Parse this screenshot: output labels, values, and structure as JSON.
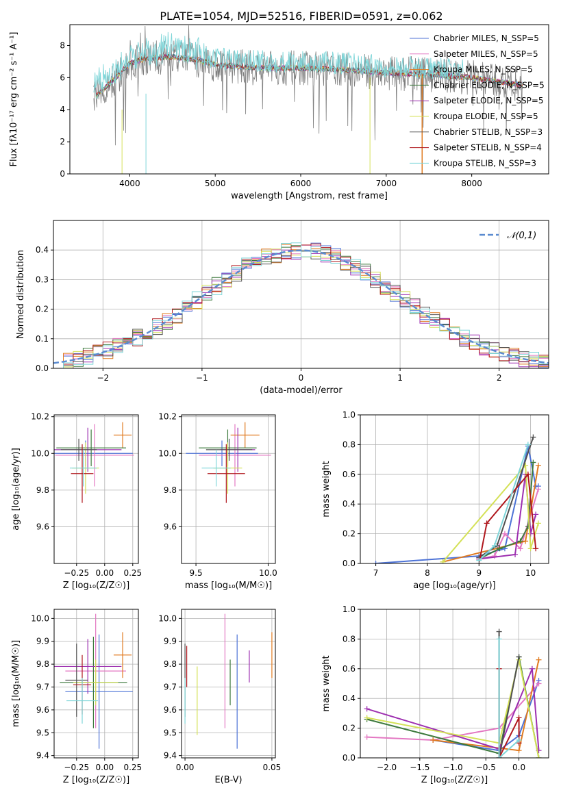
{
  "title": "PLATE=1054, MJD=52516, FIBERID=0591, z=0.062",
  "colors": [
    "#4c72d6",
    "#e377c2",
    "#e07a1f",
    "#3e7a3e",
    "#9d2fb0",
    "#d4e157",
    "#505050",
    "#b0181e",
    "#7fd6d9"
  ],
  "chart_data": [
    {
      "type": "line",
      "panel": "spectrum",
      "xlabel": "wavelength [Angstrom, rest frame]",
      "ylabel": "Flux [fλ10⁻¹⁷ erg cm⁻² s⁻¹ A⁻¹]",
      "xlim": [
        3300,
        8900
      ],
      "ylim": [
        0,
        9.3
      ],
      "xticks": [
        4000,
        5000,
        6000,
        7000,
        8000
      ],
      "yticks": [
        0,
        2,
        4,
        6,
        8
      ],
      "grid": false,
      "legend_position": "right",
      "series": [
        {
          "name": "Chabrier MILES, N_SSP=5"
        },
        {
          "name": "Salpeter MILES, N_SSP=5"
        },
        {
          "name": "Kroupa MILES, N_SSP=5"
        },
        {
          "name": "Chabrier ELODIE, N_SSP=5"
        },
        {
          "name": "Salpeter ELODIE, N_SSP=5"
        },
        {
          "name": "Kroupa ELODIE, N_SSP=5"
        },
        {
          "name": "Chabrier STELIB, N_SSP=3"
        },
        {
          "name": "Salpeter STELIB, N_SSP=4"
        },
        {
          "name": "Kroupa STELIB, N_SSP=3"
        }
      ],
      "continuum": {
        "x": [
          3600,
          3800,
          4000,
          4200,
          4500,
          4800,
          5000,
          5500,
          6000,
          6500,
          7000,
          7500,
          8000,
          8500
        ],
        "y": [
          4.8,
          5.8,
          6.9,
          7.2,
          7.3,
          7.1,
          6.8,
          6.6,
          6.6,
          6.5,
          6.3,
          6.2,
          6.0,
          5.6
        ]
      }
    },
    {
      "type": "line",
      "panel": "residuals",
      "xlabel": "(data-model)/error",
      "ylabel": "Normed distribution",
      "xlim": [
        -2.5,
        2.5
      ],
      "ylim": [
        0,
        0.5
      ],
      "xticks": [
        -2,
        -1,
        0,
        1,
        2
      ],
      "yticks": [
        0.0,
        0.1,
        0.2,
        0.3,
        0.4
      ],
      "grid": true,
      "legend_position": "top-right",
      "legend": "𝒩(0,1)",
      "bin_width": 0.1
    },
    {
      "type": "scatter",
      "panel": "age-vs-Z",
      "xlabel": "Z [log₁₀(Z/Z☉)]",
      "ylabel": "age  [log₁₀(age/yr)]",
      "xlim": [
        -0.45,
        0.3
      ],
      "ylim": [
        9.4,
        10.21
      ],
      "xticks": [
        -0.25,
        0.0,
        0.25
      ],
      "yticks": [
        9.6,
        9.8,
        10.0,
        10.2
      ],
      "grid": true,
      "points": [
        {
          "x": -0.17,
          "xerr": 0.42,
          "y": 10.0,
          "yerr": 0.07
        },
        {
          "x": -0.09,
          "xerr": 0.35,
          "y": 9.99,
          "yerr": 0.17
        },
        {
          "x": 0.16,
          "xerr": 0.08,
          "y": 10.1,
          "yerr": 0.07
        },
        {
          "x": -0.12,
          "xerr": 0.31,
          "y": 10.03,
          "yerr": 0.1
        },
        {
          "x": -0.15,
          "xerr": 0.3,
          "y": 10.02,
          "yerr": 0.12
        },
        {
          "x": -0.17,
          "xerr": 0.12,
          "y": 9.92,
          "yerr": 0.14
        },
        {
          "x": -0.23,
          "xerr": 0.16,
          "y": 10.02,
          "yerr": 0.06
        },
        {
          "x": -0.2,
          "xerr": 0.1,
          "y": 9.89,
          "yerr": 0.16
        },
        {
          "x": -0.19,
          "xerr": 0.12,
          "y": 9.92,
          "yerr": 0.1
        }
      ]
    },
    {
      "type": "scatter",
      "panel": "age-vs-mass",
      "xlabel": "mass [log₁₀(M/M☉)]",
      "ylabel": "",
      "xlim": [
        9.4,
        10.05
      ],
      "ylim": [
        9.4,
        10.21
      ],
      "xticks": [
        9.5,
        10.0
      ],
      "yticks": [
        9.6,
        9.8,
        10.0,
        10.2
      ],
      "grid": true,
      "points": [
        {
          "x": 9.68,
          "xerr": 0.25,
          "y": 10.0,
          "yerr": 0.07
        },
        {
          "x": 9.77,
          "xerr": 0.25,
          "y": 9.99,
          "yerr": 0.17
        },
        {
          "x": 9.84,
          "xerr": 0.1,
          "y": 10.1,
          "yerr": 0.07
        },
        {
          "x": 9.72,
          "xerr": 0.2,
          "y": 10.03,
          "yerr": 0.1
        },
        {
          "x": 9.79,
          "xerr": 0.12,
          "y": 10.02,
          "yerr": 0.12
        },
        {
          "x": 9.72,
          "xerr": 0.1,
          "y": 9.92,
          "yerr": 0.14
        },
        {
          "x": 9.73,
          "xerr": 0.16,
          "y": 10.02,
          "yerr": 0.06
        },
        {
          "x": 9.71,
          "xerr": 0.13,
          "y": 9.89,
          "yerr": 0.16
        },
        {
          "x": 9.64,
          "xerr": 0.1,
          "y": 9.92,
          "yerr": 0.1
        }
      ]
    },
    {
      "type": "line",
      "panel": "weight-vs-age",
      "xlabel": "age  [log₁₀(age/yr)]",
      "ylabel": "mass weight",
      "xlim": [
        6.7,
        10.35
      ],
      "ylim": [
        0,
        1.0
      ],
      "xticks": [
        7,
        8,
        9,
        10
      ],
      "yticks": [
        0.0,
        0.2,
        0.4,
        0.6,
        0.8,
        1.0
      ],
      "grid": true,
      "series": [
        {
          "x": [
            7.0,
            9.0,
            9.5,
            9.95,
            10.1,
            10.15
          ],
          "y": [
            0.0,
            0.05,
            0.1,
            0.79,
            0.52,
            0.52
          ]
        },
        {
          "x": [
            9.0,
            9.3,
            9.5,
            9.8,
            10.15
          ],
          "y": [
            0.03,
            0.05,
            0.2,
            0.1,
            0.5
          ]
        },
        {
          "x": [
            8.3,
            9.9,
            10.15
          ],
          "y": [
            0.01,
            0.15,
            0.66
          ]
        },
        {
          "x": [
            9.0,
            9.4,
            9.8,
            9.95,
            10.05
          ],
          "y": [
            0.03,
            0.1,
            0.15,
            0.25,
            0.68
          ]
        },
        {
          "x": [
            9.0,
            9.7,
            9.9,
            10.0,
            10.1
          ],
          "y": [
            0.03,
            0.06,
            0.6,
            0.2,
            0.33
          ]
        },
        {
          "x": [
            8.3,
            9.9,
            10.0,
            10.15
          ],
          "y": [
            0.01,
            0.66,
            0.1,
            0.27
          ]
        },
        {
          "x": [
            9.0,
            9.35,
            10.05
          ],
          "y": [
            0.04,
            0.12,
            0.85
          ]
        },
        {
          "x": [
            9.0,
            9.15,
            9.95,
            10.1
          ],
          "y": [
            0.0,
            0.27,
            0.6,
            0.1
          ]
        },
        {
          "x": [
            9.0,
            9.3,
            9.95
          ],
          "y": [
            0.02,
            0.12,
            0.8
          ]
        }
      ]
    },
    {
      "type": "scatter",
      "panel": "mass-vs-Z",
      "xlabel": "Z [log₁₀(Z/Z☉)]",
      "ylabel": "mass [log₁₀(M/M☉)]",
      "xlim": [
        -0.45,
        0.3
      ],
      "ylim": [
        9.39,
        10.04
      ],
      "xticks": [
        -0.25,
        0.0,
        0.25
      ],
      "yticks": [
        9.4,
        9.5,
        9.6,
        9.7,
        9.8,
        9.9,
        10.0
      ],
      "grid": true,
      "points": [
        {
          "x": -0.05,
          "xerr": 0.3,
          "y": 9.68,
          "yerr": 0.25
        },
        {
          "x": -0.08,
          "xerr": 0.27,
          "y": 9.77,
          "yerr": 0.25
        },
        {
          "x": 0.16,
          "xerr": 0.08,
          "y": 9.84,
          "yerr": 0.1
        },
        {
          "x": -0.1,
          "xerr": 0.3,
          "y": 9.72,
          "yerr": 0.2
        },
        {
          "x": -0.15,
          "xerr": 0.3,
          "y": 9.79,
          "yerr": 0.12
        },
        {
          "x": -0.08,
          "xerr": 0.2,
          "y": 9.72,
          "yerr": 0.1
        },
        {
          "x": -0.25,
          "xerr": 0.1,
          "y": 9.73,
          "yerr": 0.16
        },
        {
          "x": -0.2,
          "xerr": 0.08,
          "y": 9.71,
          "yerr": 0.13
        },
        {
          "x": -0.2,
          "xerr": 0.14,
          "y": 9.64,
          "yerr": 0.1
        }
      ]
    },
    {
      "type": "scatter",
      "panel": "mass-vs-ebv",
      "xlabel": "E(B-V)",
      "ylabel": "",
      "xlim": [
        -0.002,
        0.052
      ],
      "ylim": [
        9.39,
        10.04
      ],
      "xticks": [
        0.0,
        0.05
      ],
      "yticks": [
        9.4,
        9.5,
        9.6,
        9.7,
        9.8,
        9.9,
        10.0
      ],
      "grid": true,
      "points": [
        {
          "x": 0.03,
          "y": 9.68,
          "yerr": 0.25
        },
        {
          "x": 0.023,
          "y": 9.77,
          "yerr": 0.25
        },
        {
          "x": 0.05,
          "y": 9.84,
          "yerr": 0.1
        },
        {
          "x": 0.026,
          "y": 9.72,
          "yerr": 0.1
        },
        {
          "x": 0.037,
          "y": 9.79,
          "yerr": 0.07
        },
        {
          "x": 0.007,
          "y": 9.64,
          "yerr": 0.15
        },
        {
          "x": 0.0,
          "y": 9.73,
          "yerr": 0.16
        },
        {
          "x": 0.001,
          "y": 9.79,
          "yerr": 0.09
        },
        {
          "x": 0.0,
          "y": 9.64,
          "yerr": 0.1
        }
      ]
    },
    {
      "type": "line",
      "panel": "weight-vs-Z",
      "xlabel": "Z [log₁₀(Z/Z☉)]",
      "ylabel": "mass weight",
      "xlim": [
        -2.4,
        0.45
      ],
      "ylim": [
        0,
        1.0
      ],
      "xticks": [
        -2.0,
        -1.5,
        -1.0,
        -0.5,
        0.0
      ],
      "yticks": [
        0.0,
        0.2,
        0.4,
        0.6,
        0.8,
        1.0
      ],
      "grid": true,
      "series": [
        {
          "x": [
            -1.3,
            -0.3,
            0.0,
            0.3
          ],
          "y": [
            0.12,
            0.05,
            0.15,
            0.52
          ]
        },
        {
          "x": [
            -2.3,
            -1.3,
            -0.3,
            0.3
          ],
          "y": [
            0.14,
            0.12,
            0.2,
            0.5
          ]
        },
        {
          "x": [
            -1.3,
            0.0,
            0.3
          ],
          "y": [
            0.12,
            0.05,
            0.66
          ]
        },
        {
          "x": [
            -2.3,
            -0.3,
            0.0,
            0.3
          ],
          "y": [
            0.26,
            0.03,
            0.68,
            0.0
          ]
        },
        {
          "x": [
            -2.3,
            -0.3,
            0.2,
            0.3
          ],
          "y": [
            0.33,
            0.06,
            0.6,
            0.05
          ]
        },
        {
          "x": [
            -2.3,
            -0.3,
            0.0,
            0.3
          ],
          "y": [
            0.27,
            0.1,
            0.66,
            0.0
          ]
        },
        {
          "x": [
            -0.3,
            -0.3,
            0.0
          ],
          "y": [
            0.85,
            0.0,
            0.68
          ]
        },
        {
          "x": [
            -0.3,
            -0.3,
            0.0,
            0.0
          ],
          "y": [
            0.6,
            0.0,
            0.27,
            0.1
          ]
        },
        {
          "x": [
            -0.3,
            -0.3,
            0.0
          ],
          "y": [
            0.8,
            0.0,
            0.12
          ]
        }
      ]
    }
  ]
}
